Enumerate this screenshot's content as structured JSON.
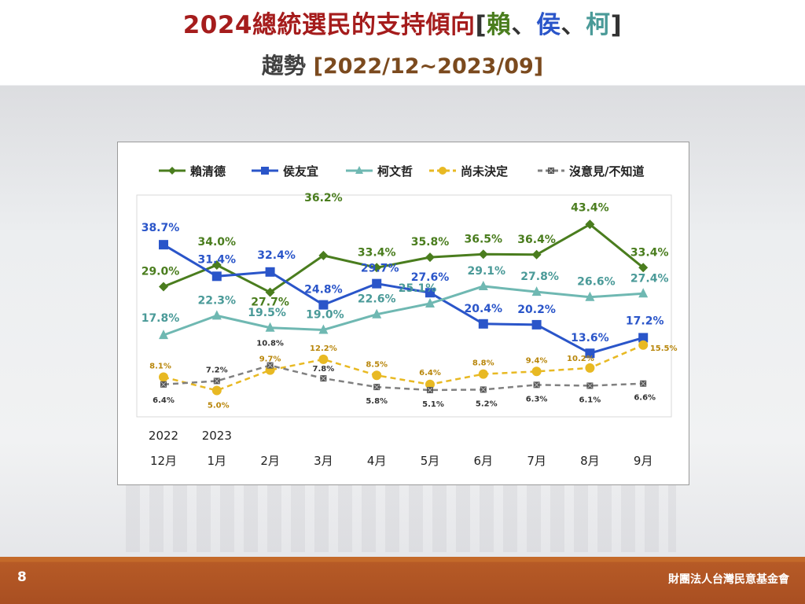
{
  "title": {
    "main_prefix": "2024總統選民的支持傾向",
    "bracket_open": "[",
    "name_lai": "賴",
    "sep1": "、",
    "name_hou": "侯",
    "sep2": "、",
    "name_ko": "柯",
    "bracket_close": "]",
    "sub_label": "趨勢",
    "sub_range": "[2022/12~2023/09]"
  },
  "footer": {
    "page_number": "8",
    "organization": "財團法人台灣民意基金會"
  },
  "colors": {
    "lai": "#4a7d1e",
    "hou": "#2a55c9",
    "ko": "#6fb8b2",
    "undecided": "#e8b923",
    "no_opinion": "#808080",
    "title_red": "#a51c1c",
    "footer": "#a94f22"
  },
  "chart_data": {
    "type": "line",
    "title": "",
    "year_labels": [
      "2022",
      "2023"
    ],
    "categories": [
      "12月",
      "1月",
      "2月",
      "3月",
      "4月",
      "5月",
      "6月",
      "7月",
      "8月",
      "9月"
    ],
    "ylim": [
      0,
      50
    ],
    "grid": false,
    "legend_position": "top",
    "series": [
      {
        "name": "賴清德",
        "key": "lai",
        "color": "#4a7d1e",
        "marker": "diamond",
        "dash": false,
        "values": [
          29.0,
          34.0,
          27.7,
          36.2,
          33.4,
          35.8,
          36.5,
          36.4,
          43.4,
          33.4
        ],
        "labels": [
          "29.0%",
          "34.0%",
          "27.7%",
          "36.2%",
          "33.4%",
          "35.8%",
          "36.5%",
          "36.4%",
          "43.4%",
          "33.4%"
        ]
      },
      {
        "name": "侯友宜",
        "key": "hou",
        "color": "#2a55c9",
        "marker": "square",
        "dash": false,
        "values": [
          38.7,
          31.4,
          32.4,
          24.8,
          29.7,
          27.6,
          20.4,
          20.2,
          13.6,
          17.2
        ],
        "labels": [
          "38.7%",
          "31.4%",
          "32.4%",
          "24.8%",
          "29.7%",
          "27.6%",
          "20.4%",
          "20.2%",
          "13.6%",
          "17.2%"
        ]
      },
      {
        "name": "柯文哲",
        "key": "ko",
        "color": "#6fb8b2",
        "marker": "triangle",
        "dash": false,
        "values": [
          17.8,
          22.3,
          19.5,
          19.0,
          22.6,
          25.1,
          29.1,
          27.8,
          26.6,
          27.4
        ],
        "labels": [
          "17.8%",
          "22.3%",
          "19.5%",
          "19.0%",
          "22.6%",
          "25.1%",
          "29.1%",
          "27.8%",
          "26.6%",
          "27.4%"
        ]
      },
      {
        "name": "尚未決定",
        "key": "undecided",
        "color": "#e8b923",
        "marker": "circle",
        "dash": true,
        "values": [
          8.1,
          5.0,
          9.7,
          12.2,
          8.5,
          6.4,
          8.8,
          9.4,
          10.2,
          15.5
        ],
        "labels": [
          "8.1%",
          "5.0%",
          "9.7%",
          "12.2%",
          "8.5%",
          "6.4%",
          "8.8%",
          "9.4%",
          "10.2%",
          "15.5%"
        ]
      },
      {
        "name": "沒意見/不知道",
        "key": "no_opinion",
        "color": "#808080",
        "marker": "x-square",
        "dash": true,
        "values": [
          6.4,
          7.2,
          10.8,
          7.8,
          5.8,
          5.1,
          5.2,
          6.3,
          6.1,
          6.6
        ],
        "labels": [
          "6.4%",
          "7.2%",
          "10.8%",
          "7.8%",
          "5.8%",
          "5.1%",
          "5.2%",
          "6.3%",
          "6.1%",
          "6.6%"
        ]
      }
    ]
  }
}
